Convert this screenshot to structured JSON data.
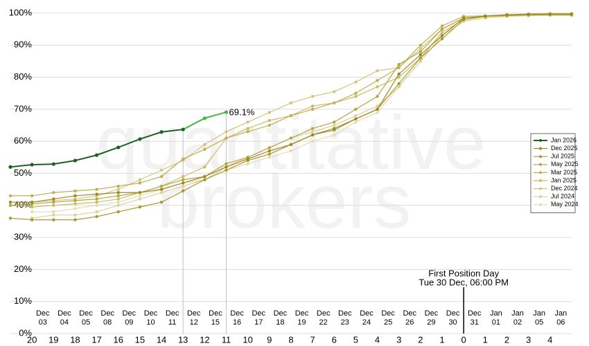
{
  "chart_data": {
    "type": "line",
    "watermark": [
      "quantitative",
      "brokers"
    ],
    "categories": [
      null,
      20,
      19,
      18,
      17,
      16,
      15,
      14,
      13,
      12,
      11,
      10,
      9,
      8,
      7,
      6,
      5,
      4,
      3,
      2,
      1,
      0,
      1,
      2,
      3,
      4,
      null
    ],
    "date_labels": [
      [
        "Dec",
        "03"
      ],
      [
        "Dec",
        "04"
      ],
      [
        "Dec",
        "05"
      ],
      [
        "Dec",
        "08"
      ],
      [
        "Dec",
        "09"
      ],
      [
        "Dec",
        "10"
      ],
      [
        "Dec",
        "11"
      ],
      [
        "Dec",
        "12"
      ],
      [
        "Dec",
        "15"
      ],
      [
        "Dec",
        "16"
      ],
      [
        "Dec",
        "17"
      ],
      [
        "Dec",
        "18"
      ],
      [
        "Dec",
        "19"
      ],
      [
        "Dec",
        "22"
      ],
      [
        "Dec",
        "23"
      ],
      [
        "Dec",
        "24"
      ],
      [
        "Dec",
        "25"
      ],
      [
        "Dec",
        "26"
      ],
      [
        "Dec",
        "29"
      ],
      [
        "Dec",
        "30"
      ],
      [
        "Dec",
        "31"
      ],
      [
        "Jan",
        "01"
      ],
      [
        "Jan",
        "02"
      ],
      [
        "Jan",
        "05"
      ],
      [
        "Jan",
        "06"
      ]
    ],
    "ylim": [
      0,
      100
    ],
    "yticks": [
      {
        "value": 0,
        "label": "0%"
      },
      {
        "value": 10,
        "label": "10%"
      },
      {
        "value": 20,
        "label": "20%"
      },
      {
        "value": 30,
        "label": "30%"
      },
      {
        "value": 40,
        "label": "40%"
      },
      {
        "value": 50,
        "label": "50%"
      },
      {
        "value": 60,
        "label": "60%"
      },
      {
        "value": 70,
        "label": "70%"
      },
      {
        "value": 80,
        "label": "80%"
      },
      {
        "value": 90,
        "label": "90%"
      },
      {
        "value": 100,
        "label": "100%"
      }
    ],
    "grid": true,
    "legend": "right",
    "annotation": [
      "First Position Day",
      "Tue 30 Dec, 06:00 PM"
    ],
    "series": [
      {
        "name": "Jan 2026",
        "color": "#1f5f1f",
        "highlight_color": "#44b844",
        "highlight_start_index": 8,
        "values": [
          52.0,
          52.7,
          52.9,
          54.0,
          55.7,
          58.1,
          60.7,
          62.9,
          63.7,
          67.2,
          69.1,
          null,
          null,
          null,
          null,
          null,
          null,
          null,
          null,
          null,
          null,
          null,
          null,
          null,
          null,
          null,
          null
        ],
        "value_labels": [
          null,
          null,
          null,
          null,
          null,
          null,
          null,
          null,
          null,
          null,
          "69.1%",
          null,
          null,
          null,
          null,
          null,
          null,
          null,
          null,
          null,
          null,
          null,
          null,
          null,
          null,
          null,
          null
        ]
      },
      {
        "name": "Dec 2025",
        "color": "#9c8820",
        "values": [
          41,
          41,
          42,
          43,
          43.5,
          44,
          44,
          45,
          47,
          49,
          52,
          54.5,
          57,
          59,
          62,
          64,
          67,
          70,
          81,
          87,
          93,
          98.5,
          99,
          99.5,
          99.7,
          99.8,
          99.8
        ]
      },
      {
        "name": "Jul 2025",
        "color": "#ab982e",
        "values": [
          36,
          35.5,
          35.5,
          35.5,
          36.5,
          38,
          39.5,
          41,
          44.5,
          48,
          51,
          54,
          56,
          59,
          62,
          63.5,
          67,
          70,
          78,
          86,
          92,
          98,
          99,
          99.3,
          99.5,
          99.6,
          99.6
        ]
      },
      {
        "name": "May 2025",
        "color": "#b6a43e",
        "values": [
          40,
          40.5,
          41,
          41.5,
          42,
          43,
          44,
          46,
          48,
          49,
          53,
          55,
          58,
          61,
          64,
          66,
          70,
          74,
          84,
          88,
          95,
          98.5,
          99,
          99.3,
          99.5,
          99.6,
          99.6
        ]
      },
      {
        "name": "Mar 2025",
        "color": "#c0af52",
        "values": [
          43,
          43,
          44,
          44.5,
          45,
          46,
          47,
          49,
          54.5,
          57.5,
          61,
          63,
          65,
          68,
          70,
          72,
          75,
          79,
          83,
          90,
          96,
          99,
          99.2,
          99.5,
          99.7,
          99.8,
          99.8
        ]
      },
      {
        "name": "Jan 2025",
        "color": "#cabb68",
        "values": [
          40,
          39.5,
          40,
          40.5,
          41,
          42,
          44,
          46,
          49,
          52,
          61,
          64,
          66.5,
          68,
          71,
          72,
          74,
          77,
          80,
          86,
          94,
          98,
          99,
          99.2,
          99.4,
          99.5,
          99.5
        ]
      },
      {
        "name": "Dec 2024",
        "color": "#d3c580",
        "values": [
          null,
          41,
          41.5,
          42,
          43,
          45,
          48,
          51,
          54,
          59,
          63,
          66,
          69,
          72,
          74,
          75.5,
          78.5,
          82,
          83,
          89,
          95,
          98.5,
          99,
          99.2,
          99.4,
          99.5,
          99.5
        ]
      },
      {
        "name": "Jul 2024",
        "color": "#dcd098",
        "values": [
          null,
          36,
          37,
          37,
          38,
          40,
          42,
          44,
          46,
          48,
          52,
          55,
          58,
          61,
          63,
          65,
          68,
          71,
          77,
          85,
          93,
          97.5,
          98.5,
          99,
          99.2,
          99.3,
          99.3
        ]
      },
      {
        "name": "May 2024",
        "color": "#e5dcb2",
        "values": [
          null,
          38,
          38,
          39,
          40,
          41,
          43,
          45,
          47,
          48,
          51,
          53,
          55,
          57,
          60,
          62,
          66,
          69,
          77,
          85,
          93,
          97.5,
          98.5,
          99,
          99.2,
          99.3,
          99.3
        ]
      }
    ]
  }
}
